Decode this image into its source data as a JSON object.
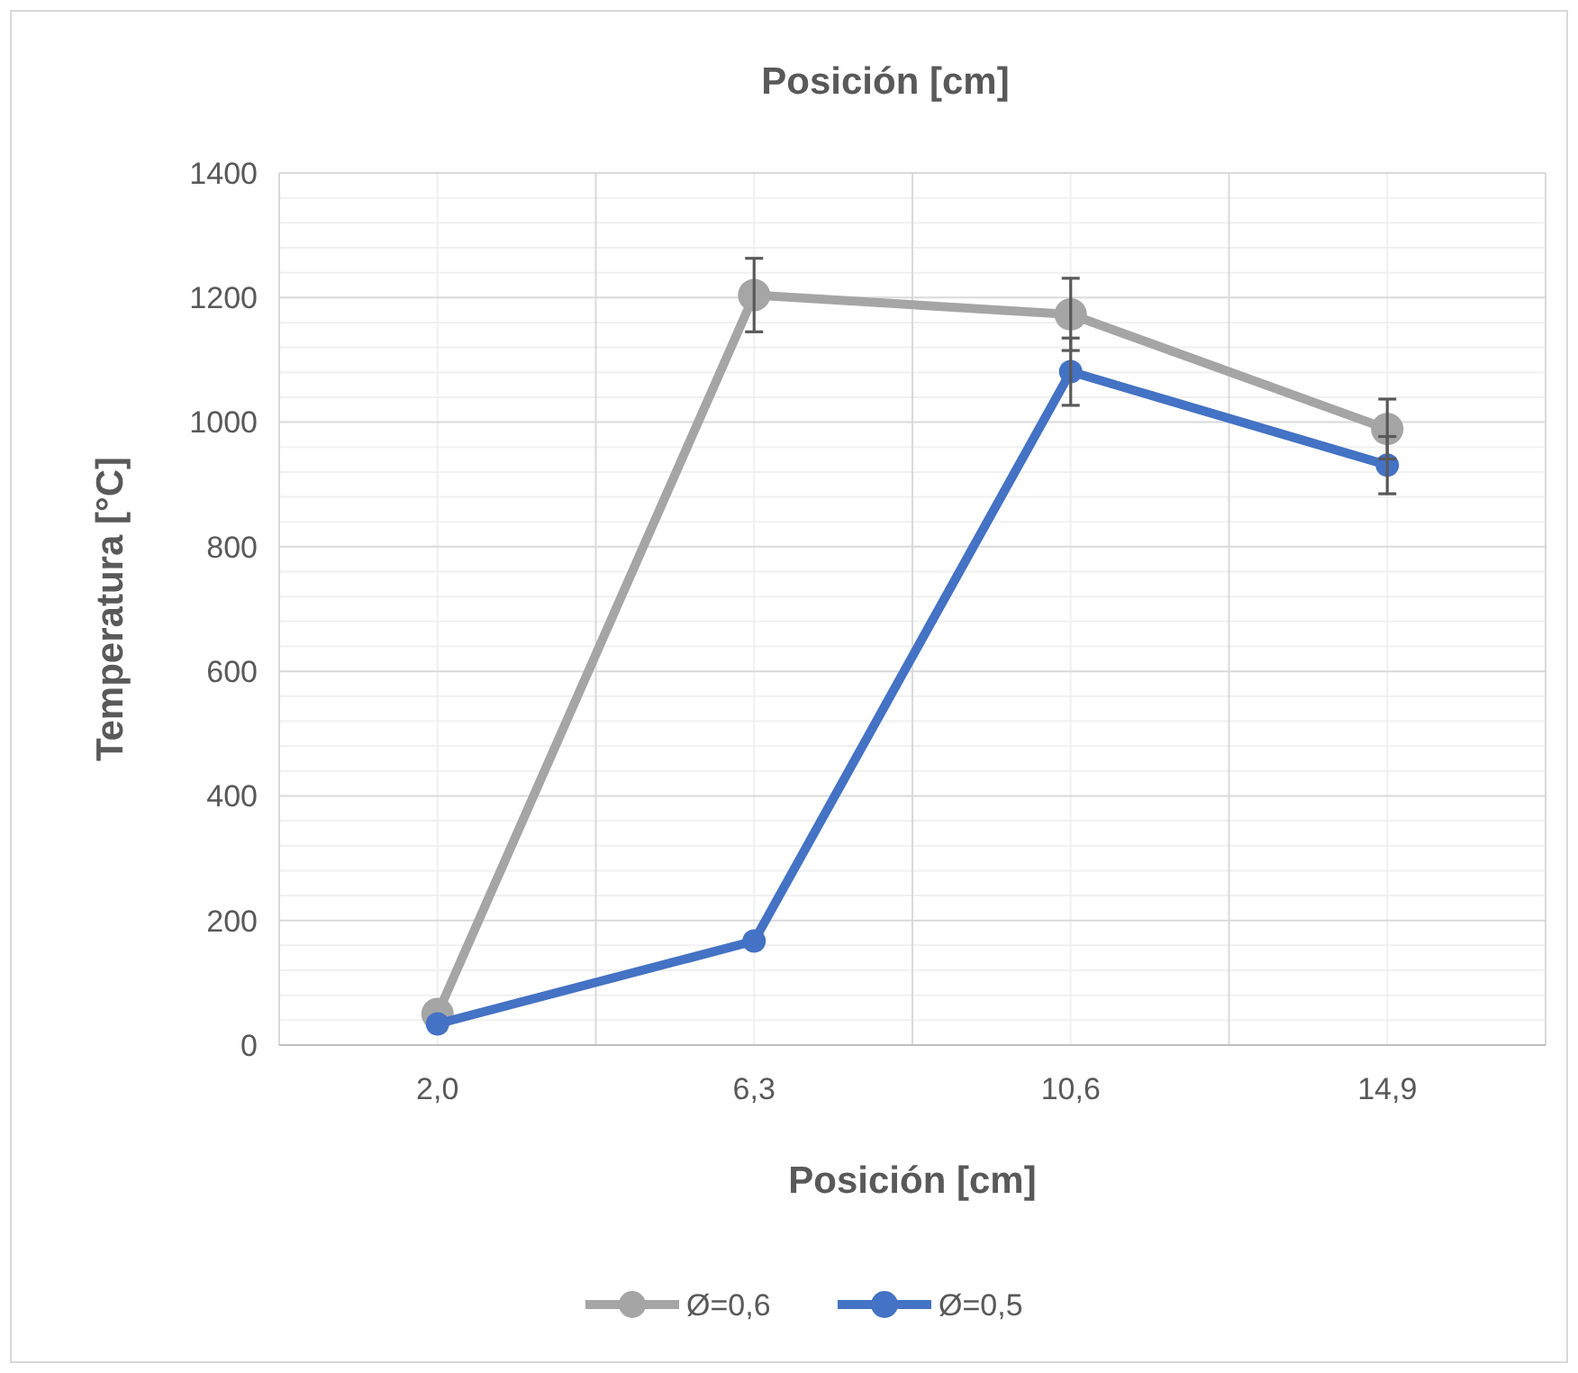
{
  "chart_data": {
    "type": "line",
    "title": "Posición [cm]",
    "xlabel": "Posición [cm]",
    "ylabel": "Temperatura [°C]",
    "categories": [
      "2,0",
      "6,3",
      "10,6",
      "14,9"
    ],
    "series": [
      {
        "name": "Ø=0,6",
        "color": "#a5a5a5",
        "values": [
          50,
          1204,
          1173,
          989
        ],
        "errors": [
          null,
          59,
          58,
          48
        ]
      },
      {
        "name": "Ø=0,5",
        "color": "#4472c4",
        "values": [
          34,
          167,
          1081,
          931
        ],
        "errors": [
          null,
          null,
          54,
          46
        ]
      }
    ],
    "ylim": [
      0,
      1400
    ],
    "yticks": [
      0,
      200,
      400,
      600,
      800,
      1000,
      1200,
      1400
    ],
    "grid": true,
    "legend": "bottom",
    "marker": "circle",
    "line_style": "solid"
  }
}
